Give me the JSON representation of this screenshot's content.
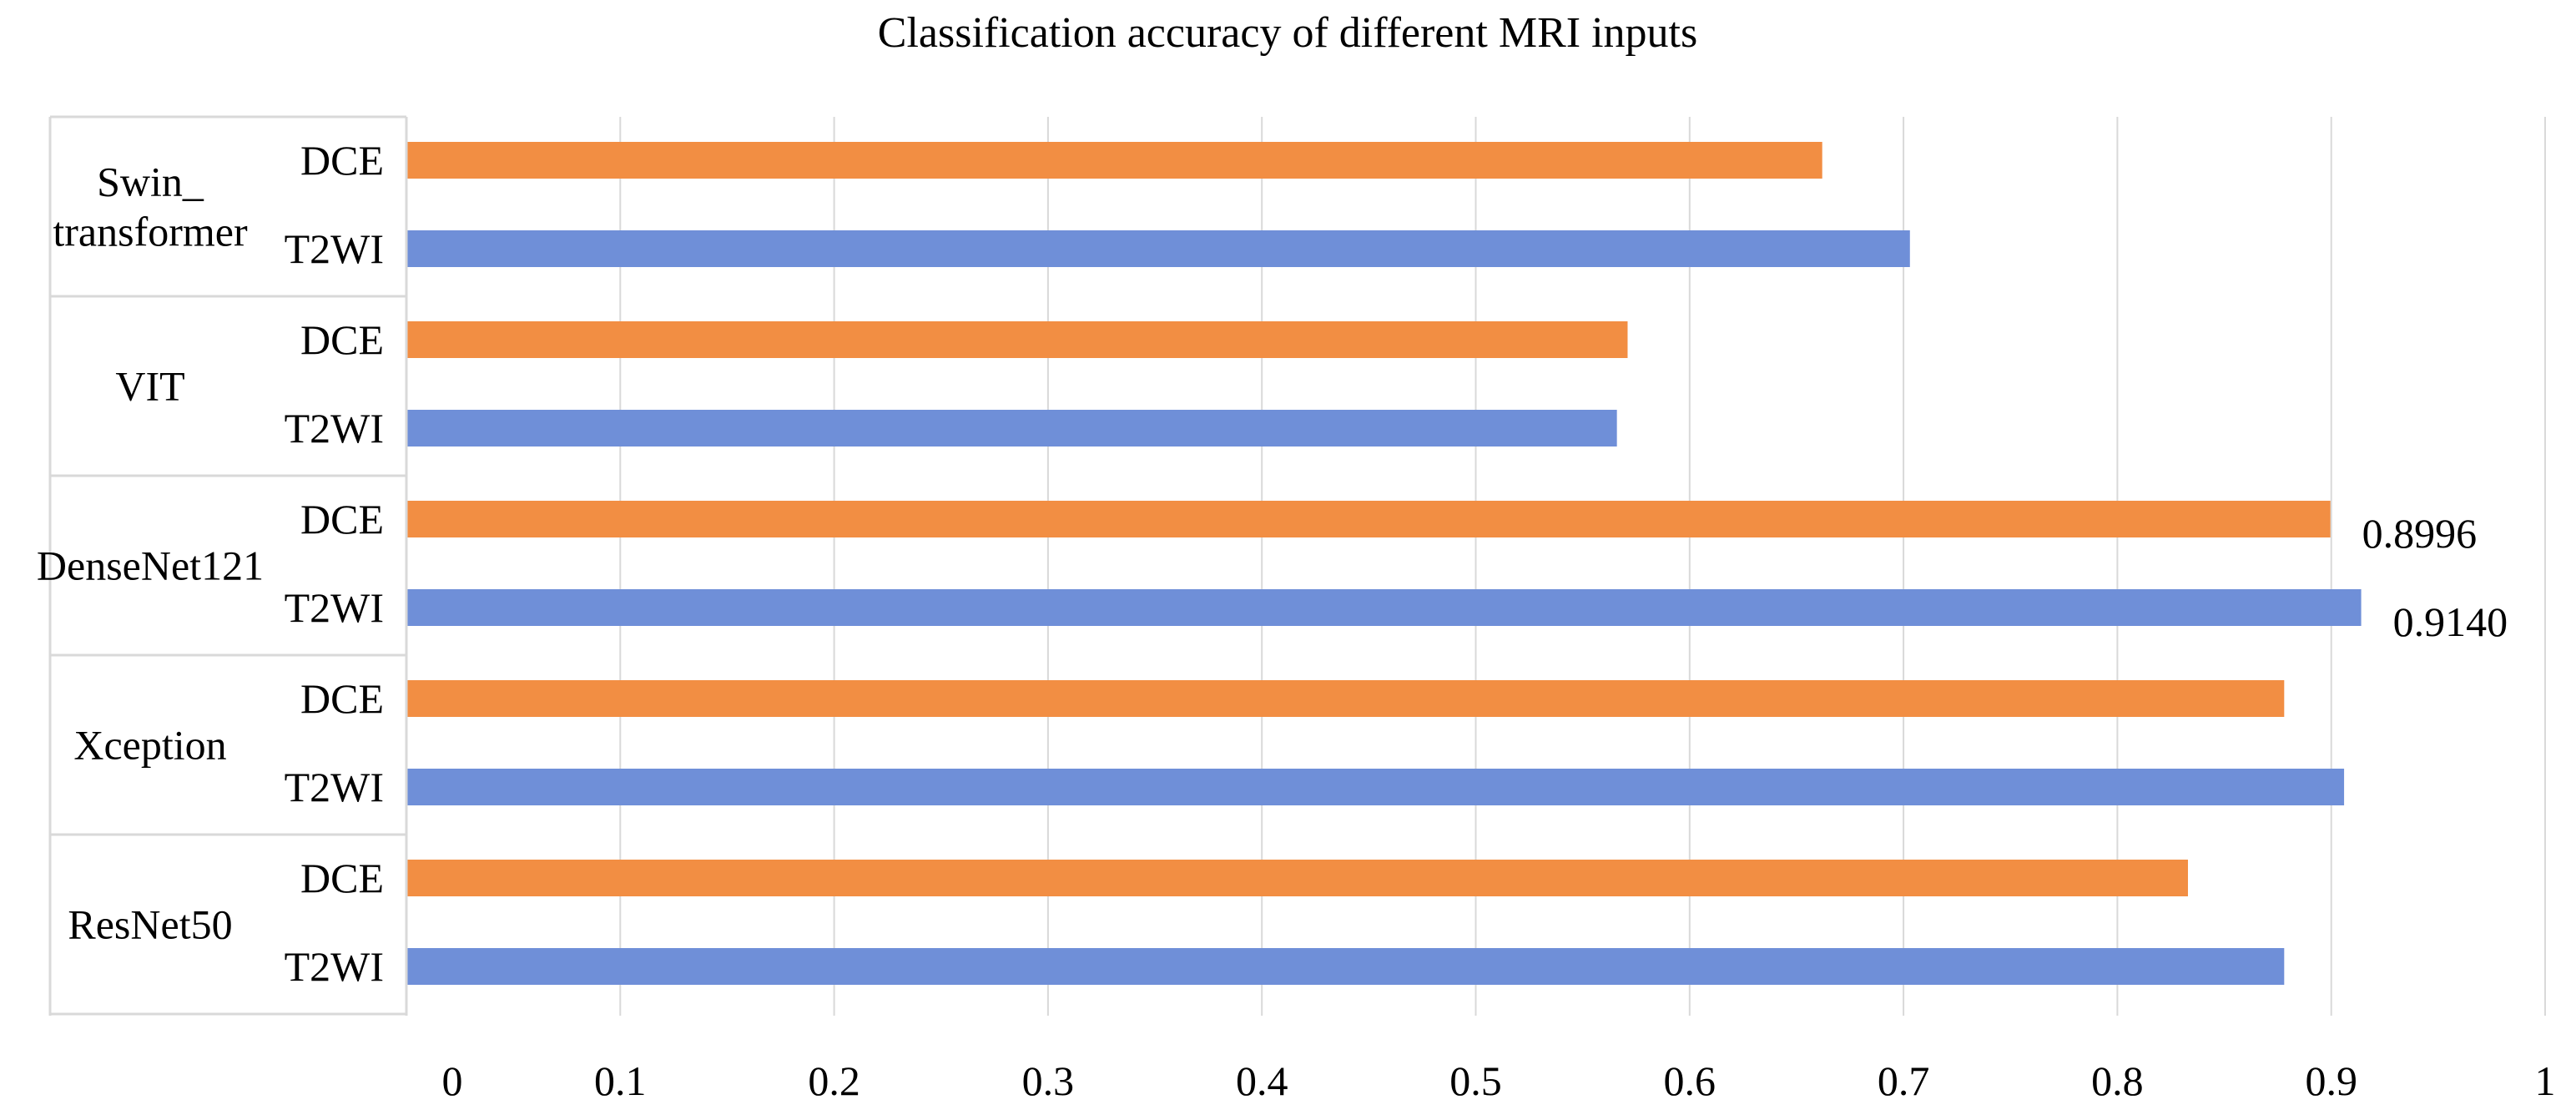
{
  "colors": {
    "DCE": "#F28E43",
    "T2WI": "#6F8FD8",
    "grid": "#D9D9D9",
    "axis": "#D9D9D9",
    "text": "#000000"
  },
  "chart_data": {
    "type": "bar",
    "orientation": "horizontal",
    "title": "Classification accuracy of different MRI inputs",
    "xlabel": "",
    "ylabel": "",
    "xlim": [
      0,
      1
    ],
    "xticks": [
      "0",
      "0.1",
      "0.2",
      "0.3",
      "0.4",
      "0.5",
      "0.6",
      "0.7",
      "0.8",
      "0.9",
      "1"
    ],
    "grid": true,
    "legend": "none",
    "groups": [
      {
        "name": "Swin_ transformer",
        "name_lines": [
          "Swin_",
          "transformer"
        ],
        "bars": [
          {
            "label": "DCE",
            "value": 0.662
          },
          {
            "label": "T2WI",
            "value": 0.703
          }
        ]
      },
      {
        "name": "VIT",
        "name_lines": [
          "VIT"
        ],
        "bars": [
          {
            "label": "DCE",
            "value": 0.571
          },
          {
            "label": "T2WI",
            "value": 0.566
          }
        ]
      },
      {
        "name": "DenseNet121",
        "name_lines": [
          "DenseNet121"
        ],
        "bars": [
          {
            "label": "DCE",
            "value": 0.8996,
            "data_label": "0.8996"
          },
          {
            "label": "T2WI",
            "value": 0.914,
            "data_label": "0.9140"
          }
        ]
      },
      {
        "name": "Xception",
        "name_lines": [
          "Xception"
        ],
        "bars": [
          {
            "label": "DCE",
            "value": 0.878
          },
          {
            "label": "T2WI",
            "value": 0.906
          }
        ]
      },
      {
        "name": "ResNet50",
        "name_lines": [
          "ResNet50"
        ],
        "bars": [
          {
            "label": "DCE",
            "value": 0.833
          },
          {
            "label": "T2WI",
            "value": 0.878
          }
        ]
      }
    ]
  }
}
